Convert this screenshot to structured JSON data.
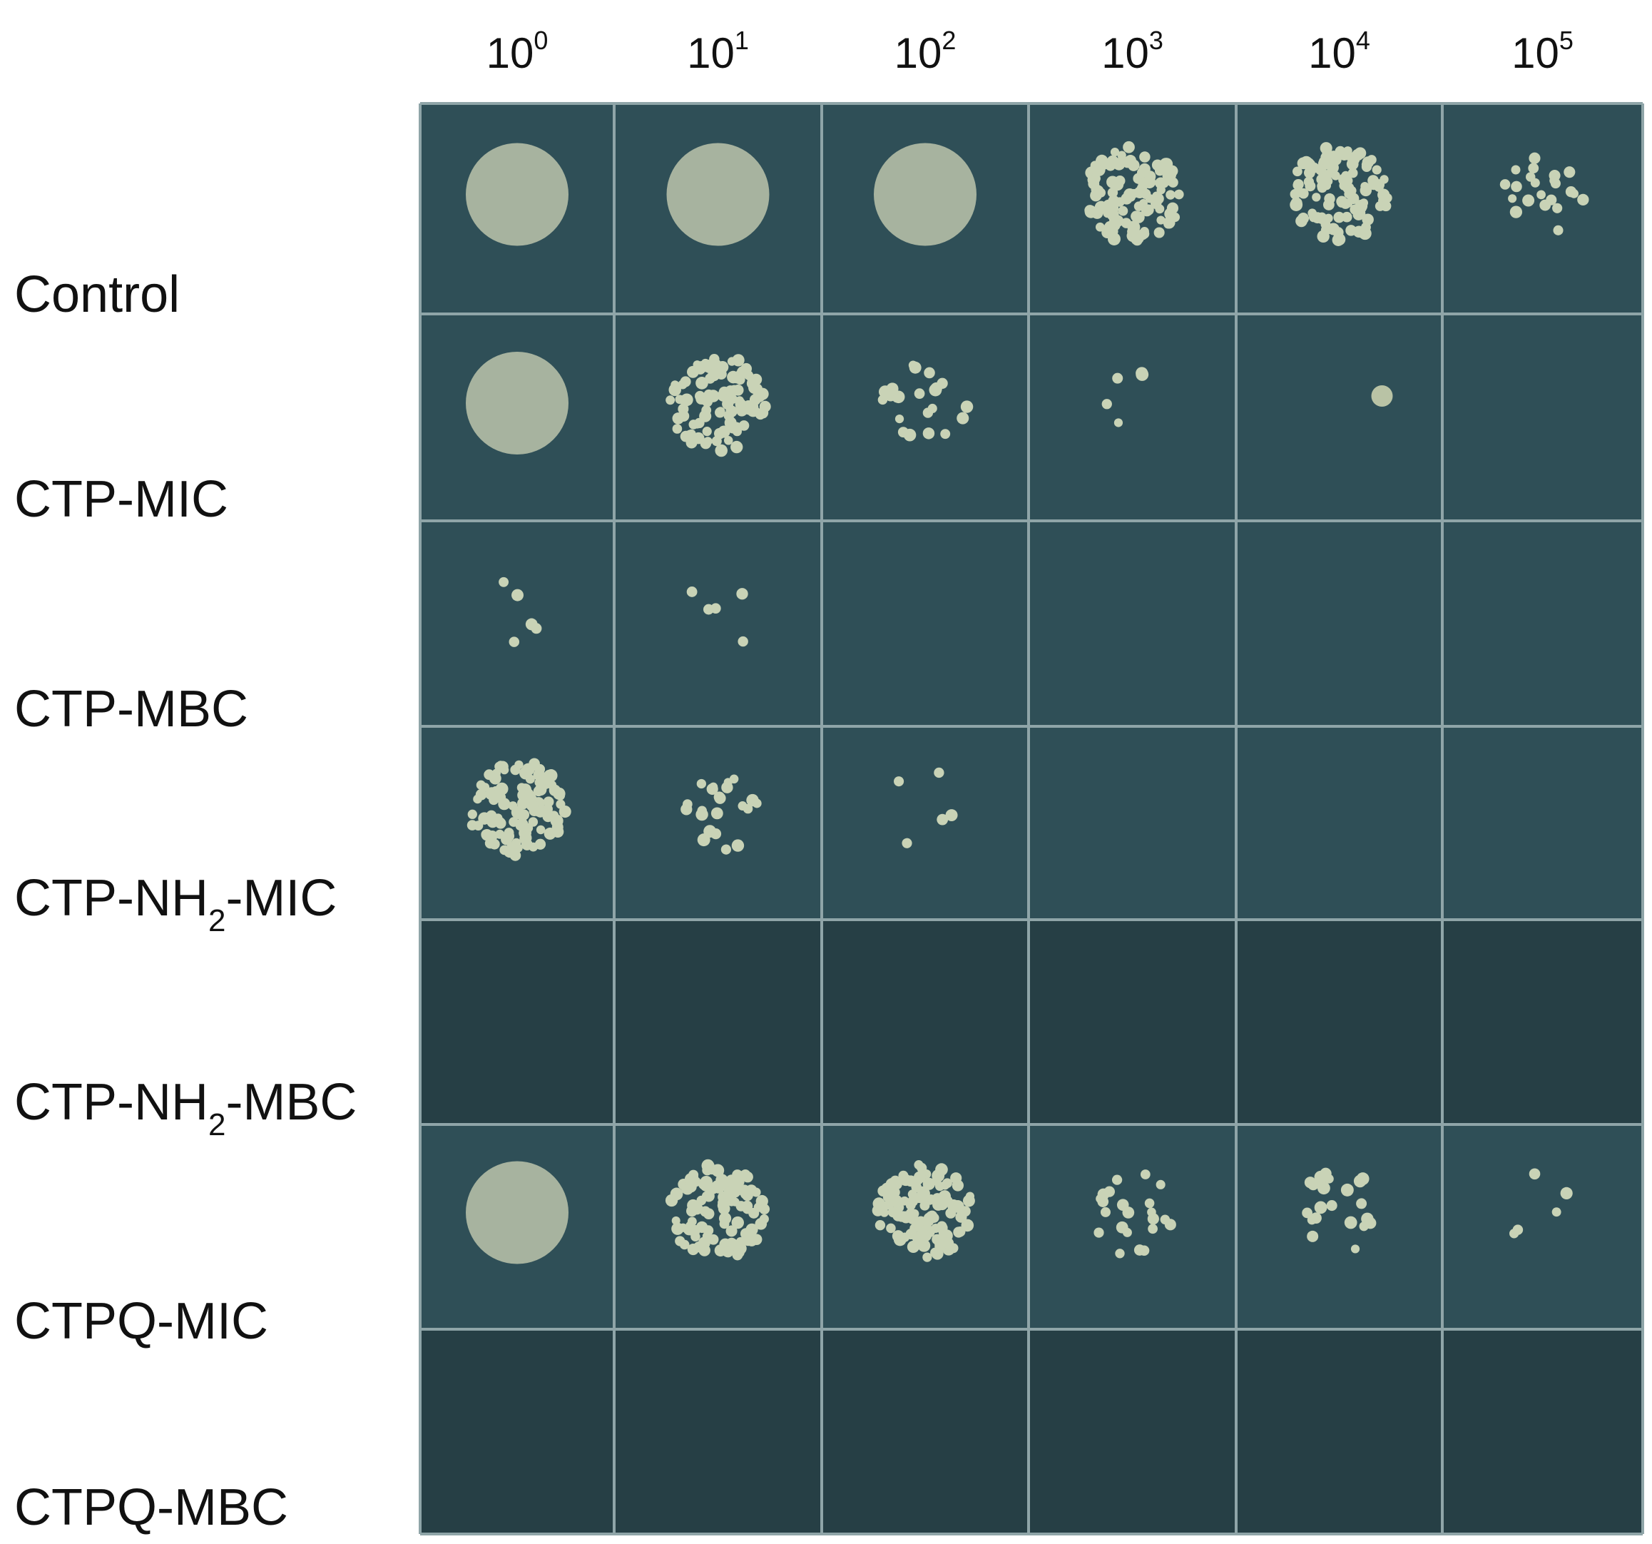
{
  "columns": [
    {
      "base": "10",
      "exp": "0"
    },
    {
      "base": "10",
      "exp": "1"
    },
    {
      "base": "10",
      "exp": "2"
    },
    {
      "base": "10",
      "exp": "3"
    },
    {
      "base": "10",
      "exp": "4"
    },
    {
      "base": "10",
      "exp": "5"
    }
  ],
  "rows": [
    {
      "label": [
        {
          "text": "Control"
        }
      ]
    },
    {
      "label": [
        {
          "text": "CTP-MIC"
        }
      ]
    },
    {
      "label": [
        {
          "text": "CTP-MBC"
        }
      ]
    },
    {
      "label": [
        {
          "text": "CTP-NH"
        },
        {
          "text": "2",
          "sub": true
        },
        {
          "text": "-MIC"
        }
      ]
    },
    {
      "label": [
        {
          "text": "CTP-NH"
        },
        {
          "text": "2",
          "sub": true
        },
        {
          "text": "-MBC"
        }
      ]
    },
    {
      "label": [
        {
          "text": "CTPQ-MIC"
        }
      ]
    },
    {
      "label": [
        {
          "text": "CTPQ-MBC"
        }
      ]
    }
  ]
}
